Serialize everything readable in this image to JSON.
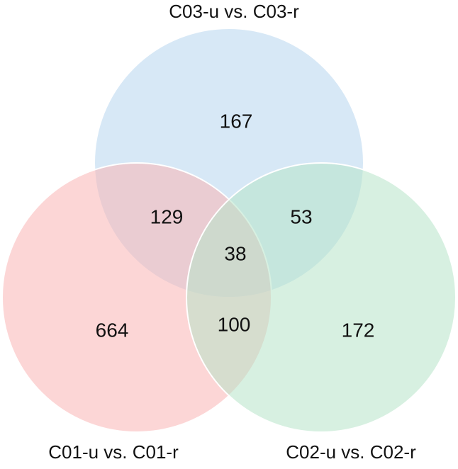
{
  "sets": [
    {
      "label": "C03-u vs. C03-r",
      "color": "#b7d6ef"
    },
    {
      "label": "C01-u vs. C01-r",
      "color": "#f9b4b4"
    },
    {
      "label": "C02-u vs. C02-r",
      "color": "#b6e4c9"
    }
  ],
  "regions": [
    {
      "name": "C03 only",
      "value": 167
    },
    {
      "name": "C01 and C03",
      "value": 129
    },
    {
      "name": "C02 and C03",
      "value": 53
    },
    {
      "name": "all three",
      "value": 38
    },
    {
      "name": "C01 only",
      "value": 664
    },
    {
      "name": "C01 and C02",
      "value": 100
    },
    {
      "name": "C02 only",
      "value": 172
    }
  ]
}
